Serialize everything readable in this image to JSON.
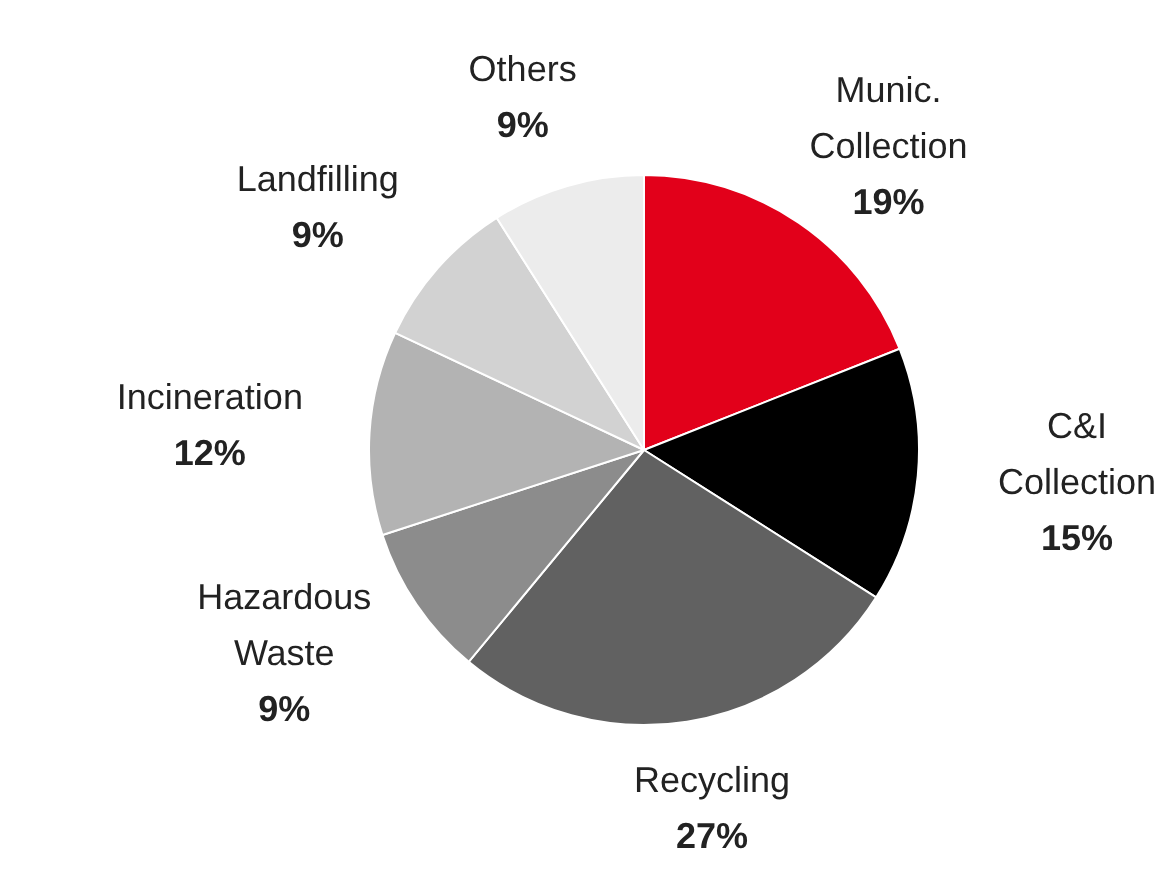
{
  "chart_data": {
    "type": "pie",
    "categories": [
      "Munic. Collection",
      "C&I Collection",
      "Recycling",
      "Hazardous Waste",
      "Incineration",
      "Landfilling",
      "Others"
    ],
    "values": [
      19,
      15,
      27,
      9,
      12,
      9,
      9
    ],
    "colors": [
      "#e2001a",
      "#000000",
      "#616161",
      "#8c8c8c",
      "#b3b3b3",
      "#d2d2d2",
      "#ececec"
    ],
    "value_labels": [
      "19%",
      "15%",
      "27%",
      "9%",
      "12%",
      "9%",
      "9%"
    ],
    "legend": false
  }
}
